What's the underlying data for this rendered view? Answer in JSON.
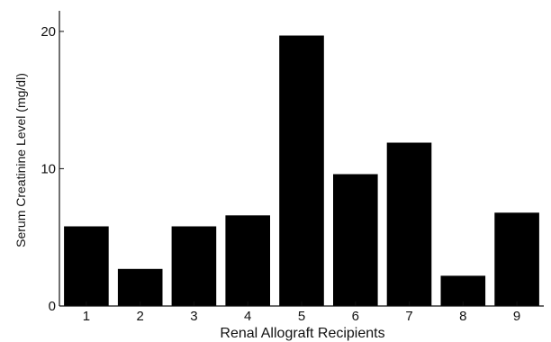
{
  "chart_data": {
    "type": "bar",
    "title": "",
    "xlabel": "Renal Allograft Recipients",
    "ylabel": "Serum Creatinine Level (mg/dl)",
    "categories": [
      "1",
      "2",
      "3",
      "4",
      "5",
      "6",
      "7",
      "8",
      "9"
    ],
    "values": [
      5.8,
      2.7,
      5.8,
      6.6,
      19.7,
      9.6,
      11.9,
      2.2,
      6.8
    ],
    "ylim": [
      0,
      21.5
    ],
    "yticks": [
      0,
      10,
      20
    ],
    "grid": false,
    "bar_color": "#000000",
    "axis_color": "#111111"
  }
}
